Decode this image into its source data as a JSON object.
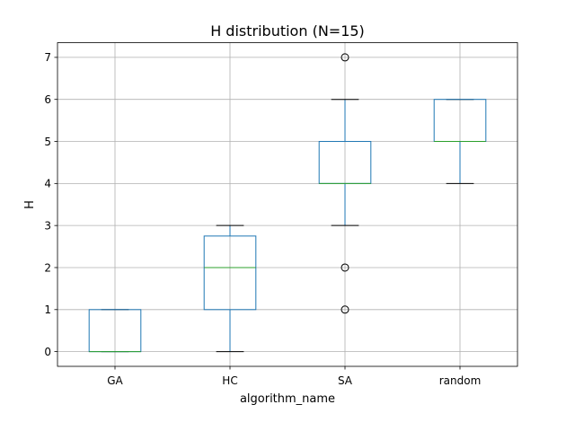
{
  "chart_data": {
    "type": "box",
    "title": "H distribution (N=15)",
    "xlabel": "algorithm_name",
    "ylabel": "H",
    "categories": [
      "GA",
      "HC",
      "SA",
      "random"
    ],
    "yticks": [
      0,
      1,
      2,
      3,
      4,
      5,
      6,
      7
    ],
    "ylim": [
      -0.35,
      7.35
    ],
    "grid": true,
    "boxes": [
      {
        "category": "GA",
        "whisker_low": 0,
        "q1": 0,
        "median": 0,
        "q3": 1,
        "whisker_high": 1,
        "outliers": []
      },
      {
        "category": "HC",
        "whisker_low": 0,
        "q1": 1,
        "median": 2,
        "q3": 2.75,
        "whisker_high": 3,
        "outliers": []
      },
      {
        "category": "SA",
        "whisker_low": 3,
        "q1": 4,
        "median": 4,
        "q3": 5,
        "whisker_high": 6,
        "outliers": [
          7,
          2,
          1
        ]
      },
      {
        "category": "random",
        "whisker_low": 4,
        "q1": 5,
        "median": 5,
        "q3": 6,
        "whisker_high": 6,
        "outliers": []
      }
    ],
    "colors": {
      "box": "#1f77b4",
      "median": "#2ca02c",
      "grid": "#b0b0b0",
      "cap": "#000000",
      "axes": "#000000"
    }
  }
}
